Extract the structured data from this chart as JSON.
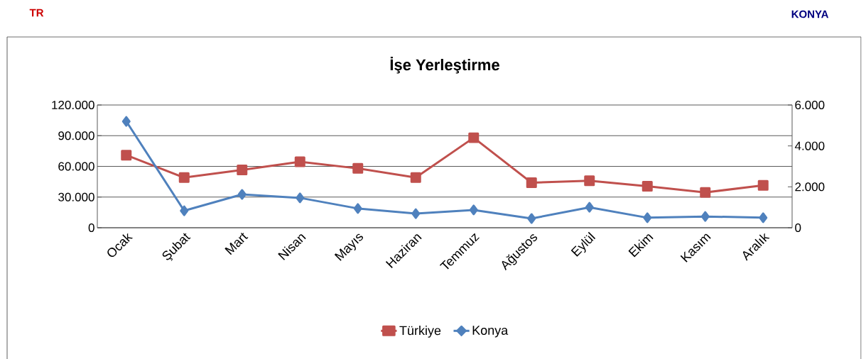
{
  "chart_data": {
    "type": "line",
    "title": "İşe Yerleştirme",
    "annotations": [
      "TR",
      "KONYA"
    ],
    "categories": [
      "Ocak",
      "Şubat",
      "Mart",
      "Nisan",
      "Mayıs",
      "Haziran",
      "Temmuz",
      "Ağustos",
      "Eylül",
      "Ekim",
      "Kasım",
      "Aralık"
    ],
    "series": [
      {
        "name": "Türkiye",
        "color": "#c0504d",
        "marker": "square",
        "values": [
          71000,
          49000,
          56500,
          64500,
          58000,
          49000,
          88000,
          44000,
          46000,
          40500,
          34500,
          41500
        ]
      },
      {
        "name": "Konya",
        "color": "#4f81bd",
        "marker": "diamond",
        "axis": "y2",
        "values": [
          5200,
          830,
          1630,
          1460,
          940,
          690,
          870,
          450,
          1000,
          490,
          550,
          490
        ]
      }
    ],
    "ylim": [
      0,
      120000
    ],
    "yticks": [
      0,
      {
        "value": 30000,
        "label": "30.000"
      },
      {
        "value": 60000,
        "label": "60.000"
      },
      {
        "value": 90000,
        "label": "90.000"
      },
      {
        "value": 120000,
        "label": "120.000"
      }
    ],
    "y2lim": [
      0,
      6000
    ],
    "y2ticks": [
      0,
      {
        "value": 2000,
        "label": "2.000"
      },
      {
        "value": 4000,
        "label": "4.000"
      },
      {
        "value": 6000,
        "label": "6.000"
      }
    ],
    "grid": "y",
    "legend": "bottom",
    "line_style": "solid"
  }
}
